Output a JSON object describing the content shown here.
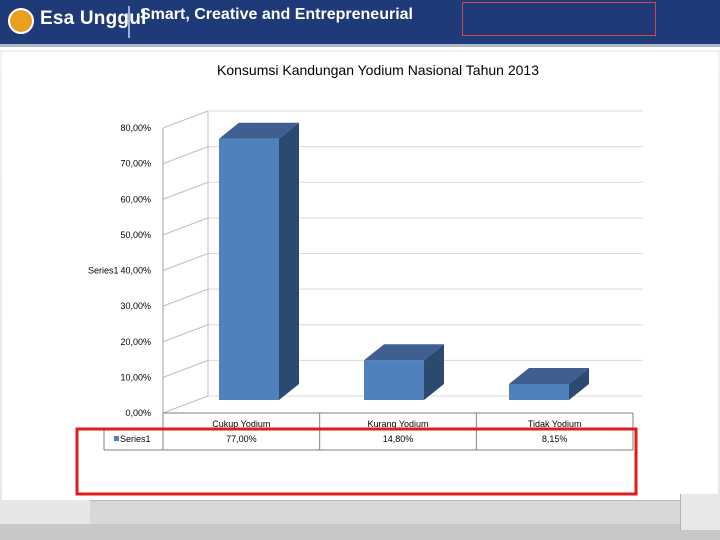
{
  "header": {
    "logo_text": "Esa Unggul",
    "tagline": "Smart, Creative and Entrepreneurial"
  },
  "chart_data": {
    "type": "bar",
    "title": "Konsumsi Kandungan Yodium Nasional Tahun 2013",
    "ylabel": "Series1",
    "categories": [
      "Cukup Yodium",
      "Kurang Yodium",
      "Tidak Yodium"
    ],
    "series": [
      {
        "name": "Series1",
        "values": [
          77.0,
          14.8,
          8.15
        ],
        "labels": [
          "77,00%",
          "14,80%",
          "8,15%"
        ]
      }
    ],
    "ylim": [
      0,
      80
    ],
    "yticks": [
      "0,00%",
      "10,00%",
      "20,00%",
      "30,00%",
      "40,00%",
      "50,00%",
      "60,00%",
      "70,00%",
      "80,00%"
    ],
    "grid": true,
    "legend": "data-table",
    "colors": {
      "bar_front": "#4f81bd",
      "bar_top": "#3e5f90",
      "bar_side": "#2c4a70"
    }
  }
}
